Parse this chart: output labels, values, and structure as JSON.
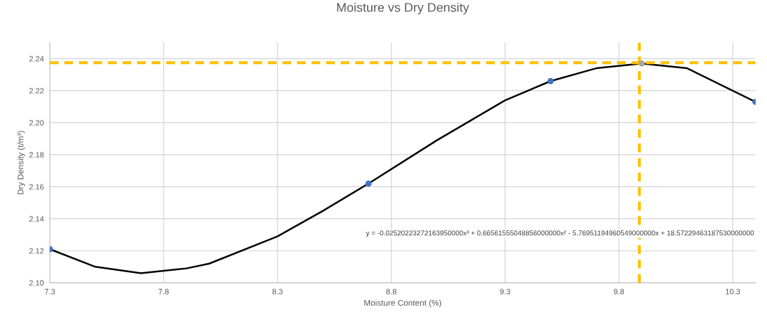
{
  "chart_data": {
    "type": "scatter",
    "title": "Moisture vs Dry Density",
    "xlabel": "Moisture Content (%)",
    "ylabel": "Dry Density (t/m³)",
    "xlim": [
      7.3,
      10.4
    ],
    "xticks": [
      7.3,
      7.8,
      8.3,
      8.8,
      9.3,
      9.8,
      10.3
    ],
    "ylim": [
      2.1,
      2.25
    ],
    "yticks": [
      {
        "value": 2.1,
        "label": "2.10"
      },
      {
        "value": 2.12,
        "label": "2.12"
      },
      {
        "value": 2.14,
        "label": "2.14"
      },
      {
        "value": 2.16,
        "label": "2.16"
      },
      {
        "value": 2.18,
        "label": "2.18"
      },
      {
        "value": 2.2,
        "label": "2.20"
      },
      {
        "value": 2.22,
        "label": "2.22"
      },
      {
        "value": 2.24,
        "label": "2.24"
      }
    ],
    "grid": true,
    "legend": false,
    "marker": "circle",
    "series": [
      {
        "type": "line",
        "color": "#000000",
        "marker": "none",
        "x": [
          7.3,
          7.5,
          7.7,
          7.9,
          8.0,
          8.3,
          8.5,
          8.7,
          9.0,
          9.3,
          9.5,
          9.7,
          9.9,
          10.1,
          10.4
        ],
        "values": [
          2.121,
          2.11,
          2.106,
          2.109,
          2.112,
          2.129,
          2.145,
          2.162,
          2.189,
          2.214,
          2.226,
          2.234,
          2.237,
          2.234,
          2.213
        ]
      },
      {
        "color": "#4472c4",
        "x": [
          7.3,
          8.7,
          9.5,
          10.4
        ],
        "values": [
          2.121,
          2.162,
          2.226,
          2.213
        ]
      },
      {
        "color": "#a5a5a5",
        "x": [
          9.9
        ],
        "values": [
          2.237
        ]
      }
    ],
    "ref_lines": [
      {
        "axis": "y",
        "value": 2.2375,
        "color": "#ffc000",
        "line_style": "dashed"
      },
      {
        "axis": "x",
        "value": 9.89,
        "color": "#ffc000",
        "line_style": "dashed"
      }
    ],
    "annotations": [
      "y = -0.02520223272163950000x³ + 0.66561555048856000000x² - 5.76951194960549000000x + 18.57229463187530000000"
    ]
  }
}
